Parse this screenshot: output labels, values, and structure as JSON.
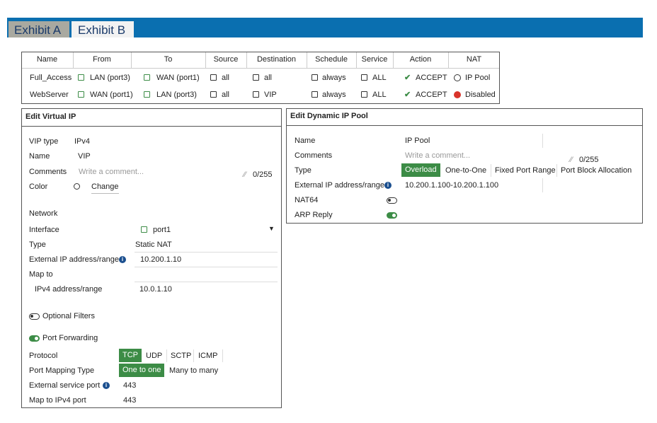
{
  "tabs": [
    "Exhibit A",
    "Exhibit B"
  ],
  "policy_table": {
    "headers": [
      "Name",
      "From",
      "To",
      "Source",
      "Destination",
      "Schedule",
      "Service",
      "Action",
      "NAT"
    ],
    "rows": [
      [
        "Full_Access",
        "LAN (port3)",
        "WAN (port1)",
        "all",
        "all",
        "always",
        "ALL",
        "ACCEPT",
        "IP Pool"
      ],
      [
        "WebServer",
        "WAN (port1)",
        "LAN (port3)",
        "all",
        "VIP",
        "always",
        "ALL",
        "ACCEPT",
        "Disabled"
      ]
    ]
  },
  "virtual_ip": {
    "title": "Edit Virtual IP",
    "vip_type": {
      "label": "VIP type",
      "value": "IPv4"
    },
    "name": {
      "label": "Name",
      "value": "VIP"
    },
    "comments": {
      "label": "Comments",
      "placeholder": "Write a comment...",
      "counter": "0/255"
    },
    "color": {
      "label": "Color",
      "button": "Change"
    },
    "network_heading": "Network",
    "interface": {
      "label": "Interface",
      "value": "port1"
    },
    "type": {
      "label": "Type",
      "value": "Static NAT"
    },
    "external_ip": {
      "label": "External IP address/range",
      "value": "10.200.1.10"
    },
    "map_to": "Map to",
    "ipv4_address": {
      "label": "IPv4 address/range",
      "value": "10.0.1.10"
    },
    "optional_filters": "Optional Filters",
    "port_forwarding": "Port Forwarding",
    "protocol": {
      "label": "Protocol",
      "options": [
        "TCP",
        "UDP",
        "SCTP",
        "ICMP"
      ]
    },
    "port_mapping_type": {
      "label": "Port Mapping Type",
      "options": [
        "One to one",
        "Many to many"
      ]
    },
    "external_service_port": {
      "label": "External service port",
      "value": "443"
    },
    "map_to_ipv4_port": {
      "label": "Map to IPv4 port",
      "value": "443"
    }
  },
  "dynamic_ip_pool": {
    "title": "Edit Dynamic IP Pool",
    "name": {
      "label": "Name",
      "value": "IP Pool"
    },
    "comments": {
      "label": "Comments",
      "placeholder": "Write a comment...",
      "counter": "0/255"
    },
    "type": {
      "label": "Type",
      "options": [
        "Overload",
        "One-to-One",
        "Fixed Port Range",
        "Port Block Allocation"
      ]
    },
    "external_ip": {
      "label": "External IP address/range",
      "value": "10.200.1.100-10.200.1.100"
    },
    "nat64": "NAT64",
    "arp_reply": "ARP Reply"
  }
}
